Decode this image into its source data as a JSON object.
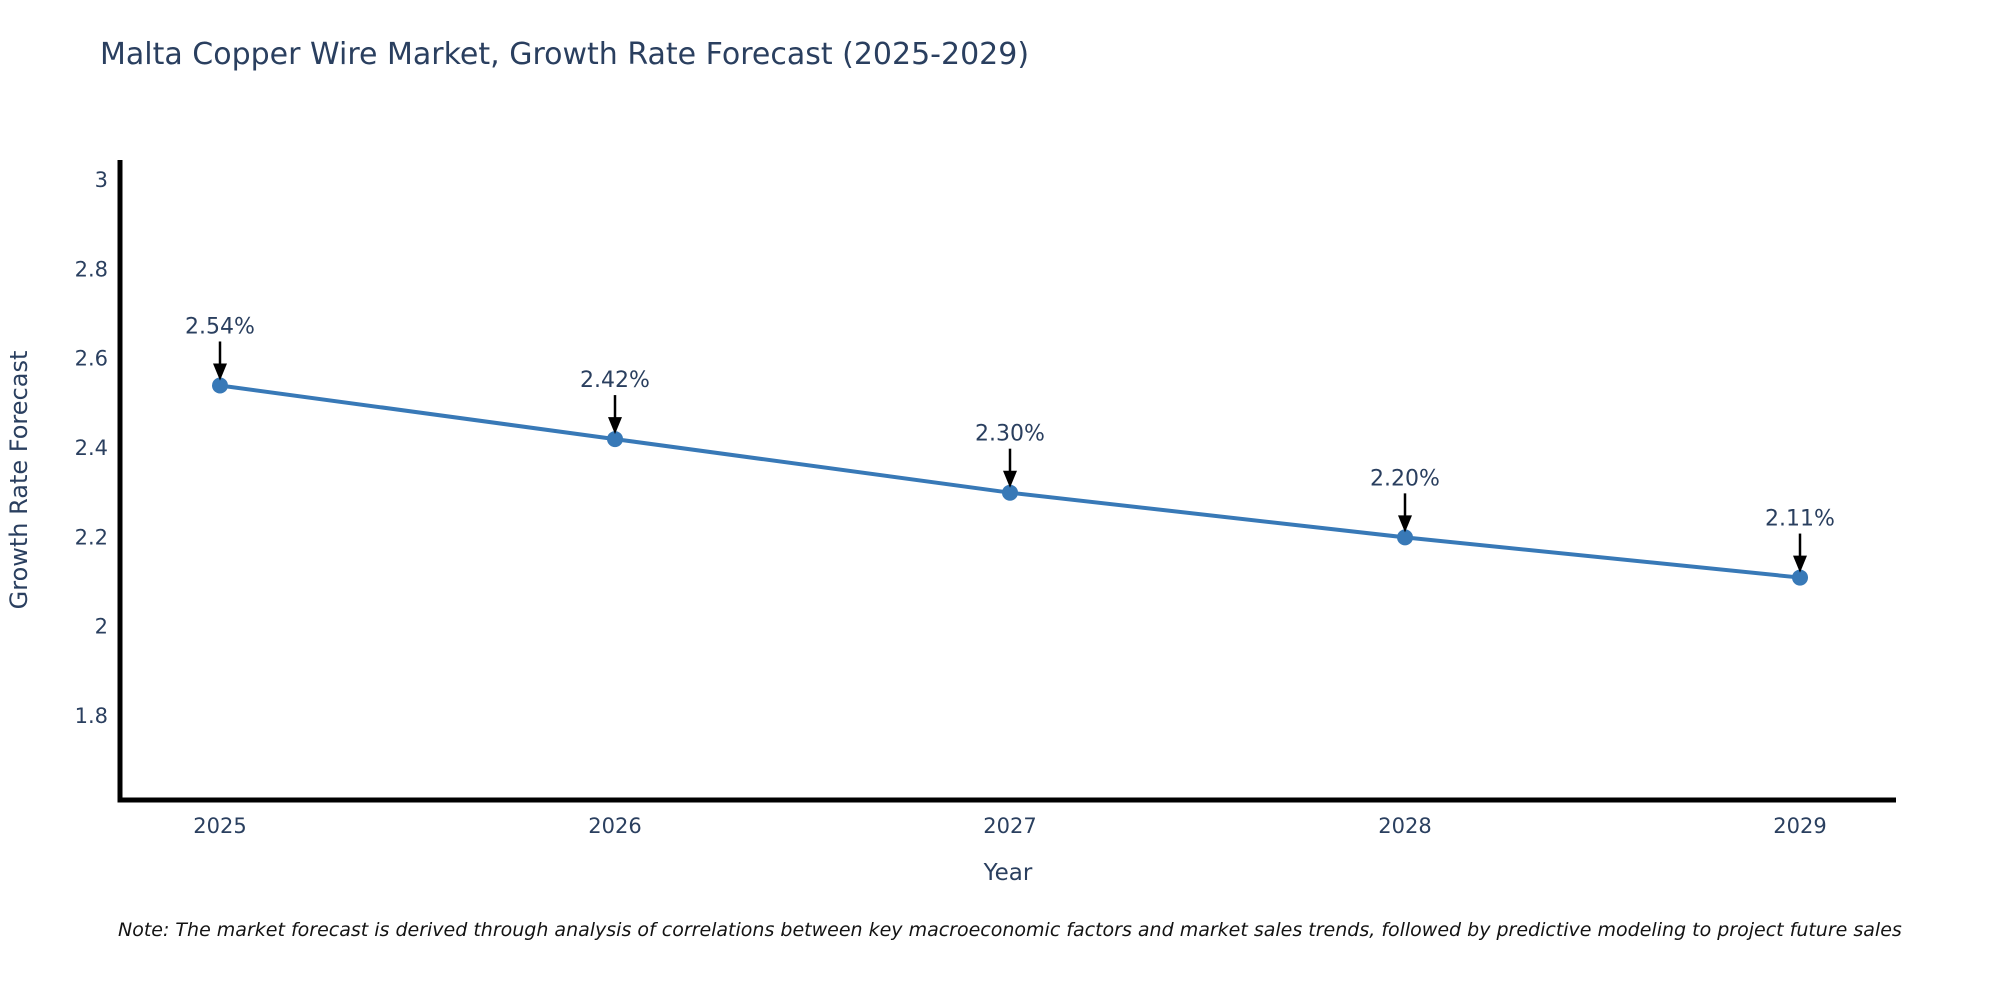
{
  "chart_data": {
    "type": "line",
    "title": "Malta Copper Wire Market, Growth Rate Forecast (2025-2029)",
    "xlabel": "Year",
    "ylabel": "Growth Rate Forecast",
    "categories": [
      "2025",
      "2026",
      "2027",
      "2028",
      "2029"
    ],
    "series": [
      {
        "name": "Growth Rate Forecast",
        "values": [
          2.54,
          2.42,
          2.3,
          2.2,
          2.11
        ]
      }
    ],
    "point_labels": [
      "2.54%",
      "2.42%",
      "2.30%",
      "2.20%",
      "2.11%"
    ],
    "y_ticks": [
      {
        "label": "3",
        "value": 3.0
      },
      {
        "label": "2.8",
        "value": 2.8
      },
      {
        "label": "2.6",
        "value": 2.6
      },
      {
        "label": "2.4",
        "value": 2.4
      },
      {
        "label": "2.2",
        "value": 2.2
      },
      {
        "label": "2",
        "value": 2.0
      },
      {
        "label": "1.8",
        "value": 1.8
      }
    ],
    "ylim": [
      1.6,
      3.05
    ],
    "grid": false,
    "legend_position": "none",
    "marker_size": 16,
    "colors": {
      "line": "#3879b7",
      "marker": "#3879b7",
      "axis": "#000000",
      "text": "#2a3f5f",
      "annotation": "#2a3f5f",
      "arrow": "#000000",
      "background": "#ffffff"
    }
  },
  "footnote": "Note: The market forecast is derived through analysis of correlations between key macroeconomic factors and market sales trends, followed by predictive modeling to project future sales"
}
